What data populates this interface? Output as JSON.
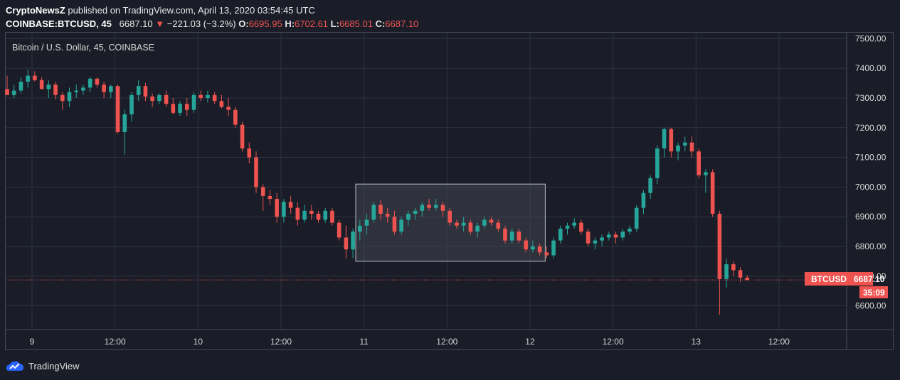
{
  "header": {
    "publisher": "CryptoNewsZ",
    "published_text": "published on TradingView.com, April 13, 2020 03:54:45 UTC"
  },
  "quote": {
    "symbol": "COINBASE:BTCUSD, 45",
    "last": "6687.10",
    "change": "−221.03 (−3.2%)",
    "open_label": "O:",
    "open": "6695.95",
    "high_label": "H:",
    "high": "6702.61",
    "low_label": "L:",
    "low": "6685.01",
    "close_label": "C:",
    "close": "6687.10"
  },
  "price_tag": {
    "label": "BTCUSD",
    "value": "6687.10",
    "countdown": "35:09"
  },
  "footer": {
    "brand": "TradingView"
  },
  "colors": {
    "up": "#26a69a",
    "down": "#ef5350",
    "background": "#1a1d27",
    "grid": "#2e3340",
    "box_fill": "#4a4d56"
  },
  "chart_data": {
    "type": "candlestick",
    "title": "Bitcoin / U.S. Dollar, 45, COINBASE",
    "ylim": [
      6520,
      7520
    ],
    "y_ticks": [
      "6600.00",
      "6700.00",
      "6800.00",
      "6900.00",
      "7000.00",
      "7100.00",
      "7200.00",
      "7300.00",
      "7400.00",
      "7500.00"
    ],
    "x_ticks": [
      "9",
      "12:00",
      "10",
      "12:00",
      "11",
      "12:00",
      "12",
      "12:00",
      "13",
      "12:00"
    ],
    "x_tick_positions": [
      0,
      12,
      24,
      36,
      48,
      60,
      72,
      84,
      96,
      108
    ],
    "current_price": 6687.1,
    "consolidation_box": {
      "x_start": 50.4,
      "x_end": 77.8,
      "y_low": 6750,
      "y_high": 7010
    },
    "candles": [
      [
        7330,
        7375,
        7310,
        7310
      ],
      [
        7310,
        7345,
        7300,
        7325
      ],
      [
        7325,
        7370,
        7315,
        7355
      ],
      [
        7355,
        7395,
        7335,
        7375
      ],
      [
        7375,
        7390,
        7355,
        7360
      ],
      [
        7360,
        7370,
        7330,
        7330
      ],
      [
        7330,
        7360,
        7300,
        7345
      ],
      [
        7345,
        7355,
        7295,
        7310
      ],
      [
        7310,
        7320,
        7260,
        7290
      ],
      [
        7290,
        7335,
        7270,
        7320
      ],
      [
        7320,
        7345,
        7300,
        7325
      ],
      [
        7325,
        7345,
        7310,
        7335
      ],
      [
        7335,
        7370,
        7320,
        7365
      ],
      [
        7365,
        7370,
        7335,
        7345
      ],
      [
        7345,
        7355,
        7300,
        7320
      ],
      [
        7320,
        7345,
        7300,
        7340
      ],
      [
        7340,
        7345,
        7180,
        7185
      ],
      [
        7185,
        7260,
        7110,
        7245
      ],
      [
        7245,
        7320,
        7220,
        7310
      ],
      [
        7310,
        7360,
        7290,
        7340
      ],
      [
        7340,
        7350,
        7290,
        7305
      ],
      [
        7305,
        7315,
        7270,
        7290
      ],
      [
        7290,
        7315,
        7280,
        7310
      ],
      [
        7310,
        7325,
        7270,
        7280
      ],
      [
        7280,
        7300,
        7245,
        7250
      ],
      [
        7250,
        7290,
        7240,
        7280
      ],
      [
        7280,
        7300,
        7240,
        7260
      ],
      [
        7260,
        7320,
        7250,
        7310
      ],
      [
        7310,
        7325,
        7290,
        7300
      ],
      [
        7300,
        7325,
        7285,
        7310
      ],
      [
        7310,
        7320,
        7280,
        7290
      ],
      [
        7290,
        7310,
        7265,
        7270
      ],
      [
        7270,
        7300,
        7240,
        7260
      ],
      [
        7260,
        7270,
        7200,
        7210
      ],
      [
        7210,
        7220,
        7120,
        7130
      ],
      [
        7130,
        7150,
        7080,
        7100
      ],
      [
        7100,
        7120,
        6980,
        7000
      ],
      [
        7000,
        7010,
        6920,
        6970
      ],
      [
        6970,
        6990,
        6940,
        6960
      ],
      [
        6960,
        6980,
        6880,
        6900
      ],
      [
        6900,
        6960,
        6880,
        6950
      ],
      [
        6950,
        6970,
        6910,
        6930
      ],
      [
        6930,
        6950,
        6870,
        6890
      ],
      [
        6890,
        6940,
        6880,
        6920
      ],
      [
        6920,
        6940,
        6890,
        6910
      ],
      [
        6910,
        6920,
        6880,
        6890
      ],
      [
        6890,
        6930,
        6880,
        6920
      ],
      [
        6920,
        6930,
        6870,
        6880
      ],
      [
        6880,
        6890,
        6820,
        6830
      ],
      [
        6830,
        6870,
        6760,
        6790
      ],
      [
        6790,
        6860,
        6760,
        6850
      ],
      [
        6850,
        6890,
        6820,
        6870
      ],
      [
        6870,
        6910,
        6840,
        6890
      ],
      [
        6890,
        6950,
        6880,
        6940
      ],
      [
        6940,
        6955,
        6890,
        6910
      ],
      [
        6910,
        6930,
        6880,
        6900
      ],
      [
        6900,
        6920,
        6840,
        6850
      ],
      [
        6850,
        6900,
        6840,
        6890
      ],
      [
        6890,
        6920,
        6870,
        6910
      ],
      [
        6910,
        6930,
        6890,
        6920
      ],
      [
        6920,
        6950,
        6900,
        6940
      ],
      [
        6940,
        6960,
        6920,
        6930
      ],
      [
        6930,
        6960,
        6920,
        6940
      ],
      [
        6940,
        6950,
        6900,
        6920
      ],
      [
        6920,
        6930,
        6870,
        6880
      ],
      [
        6880,
        6890,
        6860,
        6870
      ],
      [
        6870,
        6900,
        6850,
        6880
      ],
      [
        6880,
        6890,
        6840,
        6850
      ],
      [
        6850,
        6880,
        6830,
        6870
      ],
      [
        6870,
        6900,
        6860,
        6890
      ],
      [
        6890,
        6900,
        6870,
        6880
      ],
      [
        6880,
        6890,
        6850,
        6860
      ],
      [
        6860,
        6870,
        6810,
        6820
      ],
      [
        6820,
        6860,
        6810,
        6850
      ],
      [
        6850,
        6860,
        6810,
        6820
      ],
      [
        6820,
        6830,
        6780,
        6790
      ],
      [
        6790,
        6820,
        6780,
        6800
      ],
      [
        6800,
        6810,
        6770,
        6780
      ],
      [
        6780,
        6800,
        6760,
        6770
      ],
      [
        6770,
        6830,
        6760,
        6820
      ],
      [
        6820,
        6870,
        6810,
        6860
      ],
      [
        6860,
        6880,
        6840,
        6870
      ],
      [
        6870,
        6895,
        6860,
        6880
      ],
      [
        6880,
        6890,
        6840,
        6850
      ],
      [
        6850,
        6860,
        6800,
        6810
      ],
      [
        6810,
        6830,
        6790,
        6820
      ],
      [
        6820,
        6840,
        6800,
        6830
      ],
      [
        6830,
        6850,
        6820,
        6840
      ],
      [
        6840,
        6850,
        6810,
        6830
      ],
      [
        6830,
        6860,
        6820,
        6850
      ],
      [
        6850,
        6870,
        6840,
        6860
      ],
      [
        6860,
        6940,
        6850,
        6930
      ],
      [
        6930,
        6990,
        6910,
        6980
      ],
      [
        6980,
        7040,
        6960,
        7030
      ],
      [
        7030,
        7140,
        7010,
        7130
      ],
      [
        7130,
        7200,
        7100,
        7195
      ],
      [
        7195,
        7200,
        7100,
        7120
      ],
      [
        7120,
        7150,
        7090,
        7140
      ],
      [
        7140,
        7170,
        7120,
        7150
      ],
      [
        7150,
        7170,
        7100,
        7120
      ],
      [
        7120,
        7130,
        7030,
        7040
      ],
      [
        7040,
        7060,
        6980,
        7050
      ],
      [
        7050,
        7060,
        6900,
        6910
      ],
      [
        6910,
        6920,
        6570,
        6690
      ],
      [
        6690,
        6760,
        6660,
        6740
      ],
      [
        6740,
        6750,
        6700,
        6720
      ],
      [
        6720,
        6730,
        6680,
        6695
      ],
      [
        6695,
        6703,
        6685,
        6687
      ]
    ]
  }
}
